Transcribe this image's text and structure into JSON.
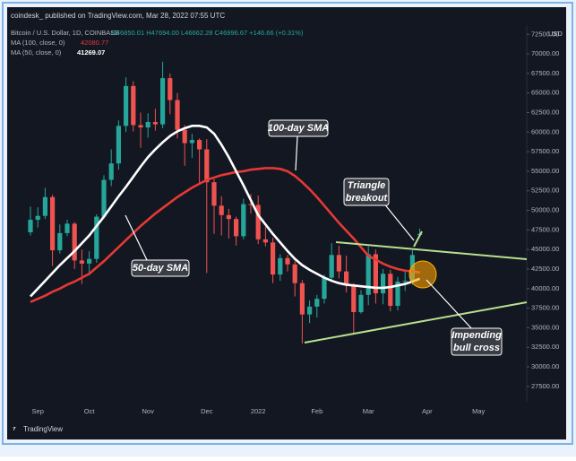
{
  "header": {
    "publisher": "coindesk_ published on TradingView.com, Mar 28, 2022 07:55 UTC",
    "symbol": "Bitcoin / U.S. Dollar, 1D, COINBASE",
    "ohlc": "O46850.01 H47694.00 L46662.28 C46996.67 +146.66 (+0.31%)",
    "brand": "TradingView"
  },
  "chart_data": {
    "type": "candlestick",
    "currency": "USD",
    "categories": [
      null,
      "Sep",
      null,
      null,
      null,
      null,
      null,
      null,
      "Oct",
      null,
      null,
      null,
      null,
      null,
      null,
      null,
      "Nov",
      null,
      null,
      null,
      null,
      null,
      null,
      null,
      "Dec",
      null,
      null,
      null,
      null,
      null,
      null,
      "2022",
      null,
      null,
      null,
      null,
      null,
      null,
      null,
      "Feb",
      null,
      null,
      null,
      null,
      null,
      null,
      "Mar",
      null,
      null,
      null,
      null,
      null,
      null,
      null,
      "Apr",
      null,
      null,
      null,
      null,
      null,
      null,
      "May"
    ],
    "open": [
      47200,
      48800,
      49300,
      51700,
      44900,
      47100,
      48300,
      43600,
      43200,
      43800,
      49200,
      53900,
      56000,
      60800,
      65900,
      60900,
      60600,
      61300,
      61000,
      66900,
      64100,
      60300,
      58600,
      59000,
      57800,
      53600,
      50600,
      49400,
      48900,
      46700,
      50800,
      50700,
      46300,
      45900,
      41800,
      43900,
      43100,
      40700,
      36700,
      37700,
      38700,
      41400,
      44300,
      42200,
      40500,
      37000,
      39200,
      44400,
      39400,
      41900,
      37800,
      40900,
      41000,
      46850.01,
      null,
      null,
      null,
      null,
      null,
      null,
      null,
      null
    ],
    "high": [
      50500,
      50400,
      52900,
      52000,
      48200,
      48800,
      48500,
      45000,
      44800,
      49500,
      54500,
      57800,
      61500,
      67000,
      66500,
      62500,
      62400,
      63000,
      69000,
      67500,
      65000,
      60900,
      59800,
      59200,
      59100,
      54000,
      51800,
      50200,
      49200,
      51500,
      52100,
      51900,
      47900,
      46500,
      44400,
      44300,
      43500,
      41100,
      38500,
      39200,
      41800,
      45800,
      45500,
      44200,
      40700,
      39800,
      45400,
      45000,
      42500,
      42400,
      41500,
      42400,
      44900,
      47694,
      null,
      null,
      null,
      null,
      null,
      null,
      null,
      null
    ],
    "low": [
      46800,
      47800,
      48900,
      42900,
      44500,
      46700,
      42500,
      40600,
      41700,
      43300,
      48900,
      53100,
      55200,
      60000,
      60100,
      58000,
      59300,
      60200,
      60500,
      62300,
      59200,
      55700,
      56700,
      53300,
      42000,
      47000,
      46800,
      46400,
      45500,
      46300,
      49600,
      45700,
      45400,
      40700,
      41000,
      42200,
      39000,
      33000,
      35600,
      36300,
      38100,
      40900,
      41300,
      39500,
      34300,
      36800,
      37900,
      38100,
      38000,
      37100,
      37200,
      39700,
      40500,
      46662.28,
      null,
      null,
      null,
      null,
      null,
      null,
      null,
      null
    ],
    "close": [
      48800,
      49300,
      51700,
      44900,
      47100,
      48300,
      43600,
      43200,
      43800,
      49200,
      53900,
      56000,
      60800,
      65900,
      60900,
      60600,
      61300,
      61000,
      66900,
      64100,
      60300,
      58600,
      59000,
      57800,
      53600,
      50600,
      49400,
      48900,
      46700,
      50800,
      50700,
      46300,
      45900,
      41800,
      43900,
      43100,
      40700,
      36700,
      37700,
      38700,
      41400,
      44300,
      42200,
      40500,
      37000,
      39200,
      44400,
      39400,
      41900,
      37800,
      40900,
      41000,
      44300,
      46996.67,
      null,
      null,
      null,
      null,
      null,
      null,
      null,
      null
    ],
    "up_color": "#26a69a",
    "down_color": "#ef5350",
    "series": [
      {
        "name": "MA (100, close, 0)",
        "color": "#e53935",
        "values": [
          38300,
          38700,
          39100,
          39600,
          40000,
          40500,
          40900,
          41400,
          41900,
          42700,
          43500,
          44400,
          45300,
          46200,
          47100,
          48000,
          48800,
          49600,
          50300,
          51000,
          51700,
          52300,
          52900,
          53400,
          53900,
          54200,
          54500,
          54700,
          54900,
          55000,
          55200,
          55300,
          55400,
          55400,
          55300,
          55000,
          54400,
          53600,
          52700,
          51700,
          50600,
          49500,
          48400,
          47400,
          46400,
          45300,
          44200,
          43700,
          43200,
          42800,
          42500,
          42300,
          42200,
          42080.77,
          null,
          null,
          null,
          null,
          null,
          null,
          null,
          null
        ]
      },
      {
        "name": "MA (50, close, 0)",
        "color": "#ffffff",
        "values": [
          39000,
          40000,
          41000,
          42000,
          43000,
          43900,
          44800,
          45800,
          46800,
          48000,
          49200,
          50500,
          51800,
          53000,
          54300,
          55600,
          56800,
          57800,
          58700,
          59500,
          60100,
          60500,
          60800,
          60800,
          60600,
          59800,
          58400,
          56800,
          55000,
          53200,
          51300,
          49400,
          48200,
          47000,
          45900,
          44800,
          43800,
          43000,
          42400,
          41900,
          41400,
          41000,
          40700,
          40500,
          40400,
          40300,
          40200,
          40100,
          40100,
          40200,
          40400,
          40600,
          40900,
          41269.07,
          null,
          null,
          null,
          null,
          null,
          null,
          null,
          null
        ]
      }
    ],
    "ylim": [
      25650,
      73450
    ],
    "yticks": [
      {
        "value": 27500,
        "label": "27500.00"
      },
      {
        "value": 30000,
        "label": "30000.00"
      },
      {
        "value": 32500,
        "label": "32500.00"
      },
      {
        "value": 35000,
        "label": "35000.00"
      },
      {
        "value": 37500,
        "label": "37500.00"
      },
      {
        "value": 40000,
        "label": "40000.00"
      },
      {
        "value": 42500,
        "label": "42500.00"
      },
      {
        "value": 45000,
        "label": "45000.00"
      },
      {
        "value": 47500,
        "label": "47500.00"
      },
      {
        "value": 50000,
        "label": "50000.00"
      },
      {
        "value": 52500,
        "label": "52500.00"
      },
      {
        "value": 55000,
        "label": "55000.00"
      },
      {
        "value": 57500,
        "label": "57500.00"
      },
      {
        "value": 60000,
        "label": "60000.00"
      },
      {
        "value": 62500,
        "label": "62500.00"
      },
      {
        "value": 65000,
        "label": "65000.00"
      },
      {
        "value": 67500,
        "label": "67500.00"
      },
      {
        "value": 70000,
        "label": "70000.00"
      },
      {
        "value": 72500,
        "label": "72500.00"
      }
    ],
    "grid": false,
    "annotations": [
      {
        "lines": [
          "100-day SMA"
        ]
      },
      {
        "lines": [
          "50-day SMA"
        ]
      },
      {
        "lines": [
          "Triangle",
          "breakout"
        ]
      },
      {
        "lines": [
          "Impending",
          "bull cross"
        ]
      }
    ]
  }
}
